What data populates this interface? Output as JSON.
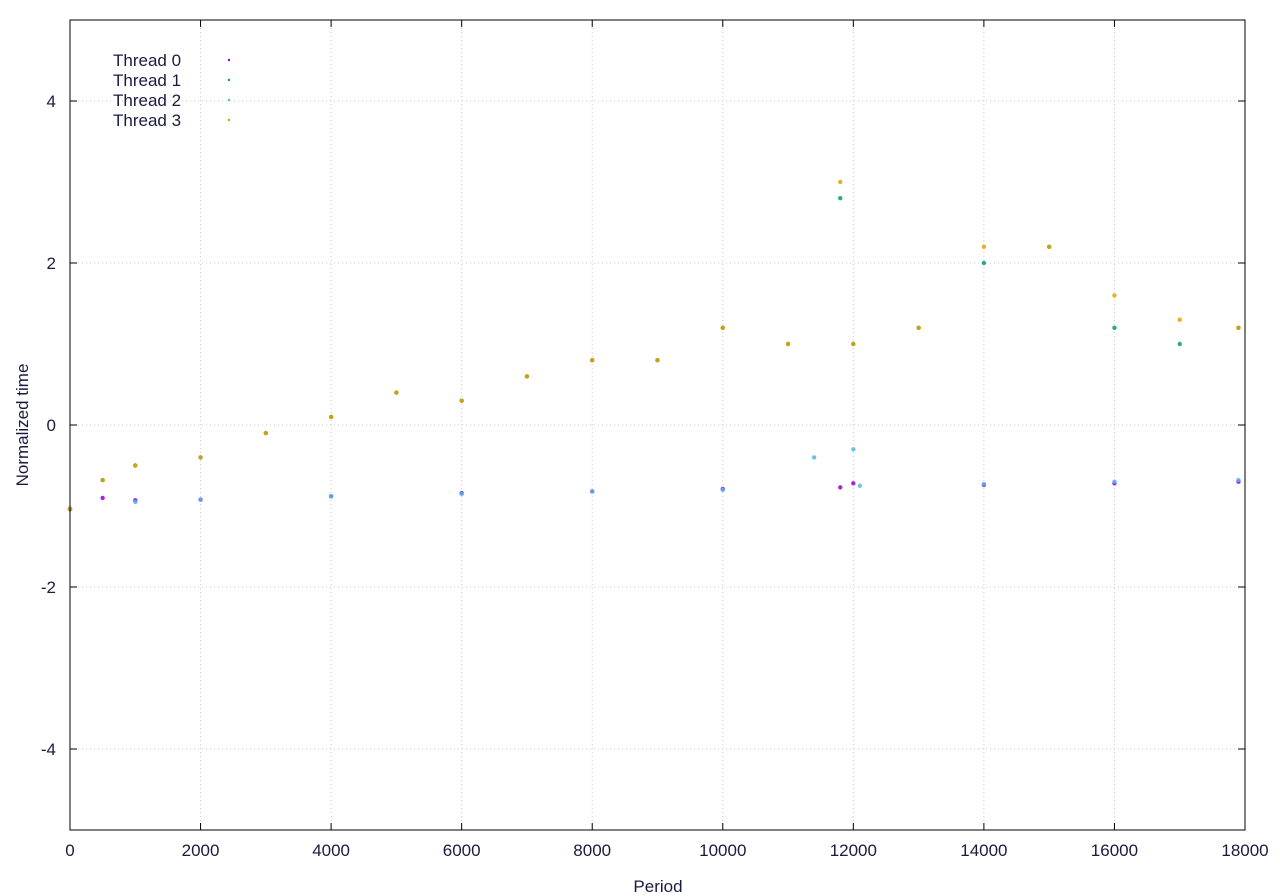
{
  "chart_data": {
    "type": "scatter",
    "title": "",
    "xlabel": "Period",
    "ylabel": "Normalized time",
    "xlim": [
      0,
      18000
    ],
    "ylim": [
      -5,
      5
    ],
    "xticks": [
      0,
      2000,
      4000,
      6000,
      8000,
      10000,
      12000,
      14000,
      16000,
      18000
    ],
    "yticks": [
      -4,
      -2,
      0,
      2,
      4
    ],
    "xtick_labels": [
      "0",
      "2000",
      "4000",
      "6000",
      "8000",
      "10000",
      "12000",
      "14000",
      "16000",
      "18000"
    ],
    "ytick_labels": [
      "-4",
      "-2",
      "0",
      "2",
      "4"
    ],
    "grid": true,
    "legend_position": "top-left",
    "series": [
      {
        "name": "Thread 0",
        "color": "#9400d3",
        "marker": "dot",
        "trend": "flat",
        "points": [
          [
            0,
            -1.04
          ],
          [
            500,
            -0.9
          ],
          [
            1000,
            -0.93
          ],
          [
            2000,
            -0.92
          ],
          [
            4000,
            -0.88
          ],
          [
            6000,
            -0.84
          ],
          [
            8000,
            -0.82
          ],
          [
            10000,
            -0.79
          ],
          [
            11800,
            -0.77
          ],
          [
            12000,
            -0.72
          ],
          [
            14000,
            -0.74
          ],
          [
            16000,
            -0.72
          ],
          [
            17900,
            -0.7
          ]
        ]
      },
      {
        "name": "Thread 1",
        "color": "#009e73",
        "marker": "dot",
        "trend": "sawtooth",
        "points": [
          [
            0,
            -1.04
          ],
          [
            500,
            -0.68
          ],
          [
            1000,
            -0.5
          ],
          [
            2000,
            -0.4
          ],
          [
            3000,
            -0.1
          ],
          [
            4000,
            0.1
          ],
          [
            5000,
            0.4
          ],
          [
            6000,
            0.3
          ],
          [
            7000,
            0.6
          ],
          [
            8000,
            0.8
          ],
          [
            9000,
            0.8
          ],
          [
            10000,
            1.2
          ],
          [
            11000,
            1.0
          ],
          [
            11800,
            2.8
          ],
          [
            12000,
            1.0
          ],
          [
            13000,
            1.2
          ],
          [
            14000,
            2.0
          ],
          [
            15000,
            2.2
          ],
          [
            16000,
            1.2
          ],
          [
            17000,
            1.0
          ],
          [
            17900,
            1.2
          ]
        ]
      },
      {
        "name": "Thread 2",
        "color": "#56b4e9",
        "marker": "dot",
        "trend": "flat",
        "points": [
          [
            0,
            -1.03
          ],
          [
            1000,
            -0.95
          ],
          [
            2000,
            -0.92
          ],
          [
            4000,
            -0.88
          ],
          [
            6000,
            -0.85
          ],
          [
            8000,
            -0.82
          ],
          [
            10000,
            -0.8
          ],
          [
            11400,
            -0.4
          ],
          [
            12000,
            -0.3
          ],
          [
            12100,
            -0.75
          ],
          [
            14000,
            -0.73
          ],
          [
            16000,
            -0.7
          ],
          [
            17900,
            -0.68
          ]
        ]
      },
      {
        "name": "Thread 3",
        "color": "#e69f00",
        "marker": "dot",
        "trend": "sawtooth",
        "points": [
          [
            0,
            -1.04
          ],
          [
            500,
            -0.68
          ],
          [
            1000,
            -0.5
          ],
          [
            2000,
            -0.4
          ],
          [
            3000,
            -0.1
          ],
          [
            4000,
            0.1
          ],
          [
            5000,
            0.4
          ],
          [
            6000,
            0.3
          ],
          [
            7000,
            0.6
          ],
          [
            8000,
            0.8
          ],
          [
            9000,
            0.8
          ],
          [
            10000,
            1.2
          ],
          [
            11000,
            1.0
          ],
          [
            11800,
            3.0
          ],
          [
            12000,
            1.0
          ],
          [
            13000,
            1.2
          ],
          [
            14000,
            2.2
          ],
          [
            15000,
            2.2
          ],
          [
            16000,
            1.6
          ],
          [
            17000,
            1.3
          ],
          [
            17900,
            1.2
          ]
        ]
      }
    ]
  }
}
